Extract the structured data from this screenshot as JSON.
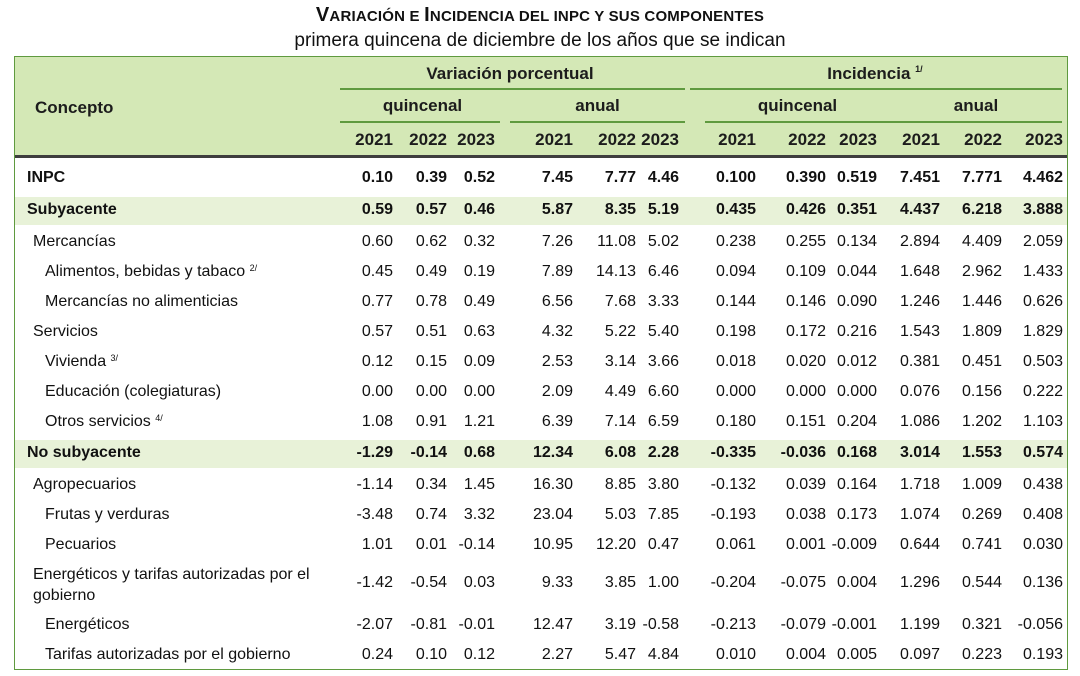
{
  "title": {
    "first": "V",
    "rest1": "ARIACIÓN E ",
    "second": "I",
    "rest2": "NCIDENCIA DEL ",
    "third": "INPC",
    "rest3": " Y SUS COMPONENTES"
  },
  "subtitle": "primera quincena de diciembre de los años que se indican",
  "header": {
    "concepto": "Concepto",
    "variacion": "Variación porcentual",
    "incidencia": "Incidencia",
    "incidencia_note": "1/",
    "quincenal": "quincenal",
    "anual": "anual",
    "years": [
      "2021",
      "2022",
      "2023"
    ]
  },
  "rows": [
    {
      "label": "INPC",
      "note": "",
      "bold": true,
      "band": false,
      "indent": 0,
      "values": [
        "0.10",
        "0.39",
        "0.52",
        "7.45",
        "7.77",
        "4.46",
        "0.100",
        "0.390",
        "0.519",
        "7.451",
        "7.771",
        "4.462"
      ]
    },
    {
      "label": "Subyacente",
      "note": "",
      "bold": true,
      "band": true,
      "indent": 1,
      "values": [
        "0.59",
        "0.57",
        "0.46",
        "5.87",
        "8.35",
        "5.19",
        "0.435",
        "0.426",
        "0.351",
        "4.437",
        "6.218",
        "3.888"
      ]
    },
    {
      "label": "Mercancías",
      "note": "",
      "bold": false,
      "band": false,
      "indent": 2,
      "values": [
        "0.60",
        "0.62",
        "0.32",
        "7.26",
        "11.08",
        "5.02",
        "0.238",
        "0.255",
        "0.134",
        "2.894",
        "4.409",
        "2.059"
      ]
    },
    {
      "label": "Alimentos, bebidas y tabaco",
      "note": "2/",
      "bold": false,
      "band": false,
      "indent": 3,
      "values": [
        "0.45",
        "0.49",
        "0.19",
        "7.89",
        "14.13",
        "6.46",
        "0.094",
        "0.109",
        "0.044",
        "1.648",
        "2.962",
        "1.433"
      ]
    },
    {
      "label": "Mercancías no alimenticias",
      "note": "",
      "bold": false,
      "band": false,
      "indent": 3,
      "values": [
        "0.77",
        "0.78",
        "0.49",
        "6.56",
        "7.68",
        "3.33",
        "0.144",
        "0.146",
        "0.090",
        "1.246",
        "1.446",
        "0.626"
      ]
    },
    {
      "label": "Servicios",
      "note": "",
      "bold": false,
      "band": false,
      "indent": 2,
      "values": [
        "0.57",
        "0.51",
        "0.63",
        "4.32",
        "5.22",
        "5.40",
        "0.198",
        "0.172",
        "0.216",
        "1.543",
        "1.809",
        "1.829"
      ]
    },
    {
      "label": "Vivienda",
      "note": "3/",
      "bold": false,
      "band": false,
      "indent": 3,
      "values": [
        "0.12",
        "0.15",
        "0.09",
        "2.53",
        "3.14",
        "3.66",
        "0.018",
        "0.020",
        "0.012",
        "0.381",
        "0.451",
        "0.503"
      ]
    },
    {
      "label": "Educación (colegiaturas)",
      "note": "",
      "bold": false,
      "band": false,
      "indent": 3,
      "values": [
        "0.00",
        "0.00",
        "0.00",
        "2.09",
        "4.49",
        "6.60",
        "0.000",
        "0.000",
        "0.000",
        "0.076",
        "0.156",
        "0.222"
      ]
    },
    {
      "label": "Otros servicios",
      "note": "4/",
      "bold": false,
      "band": false,
      "indent": 3,
      "values": [
        "1.08",
        "0.91",
        "1.21",
        "6.39",
        "7.14",
        "6.59",
        "0.180",
        "0.151",
        "0.204",
        "1.086",
        "1.202",
        "1.103"
      ]
    },
    {
      "label": "No subyacente",
      "note": "",
      "bold": true,
      "band": true,
      "indent": 1,
      "values": [
        "-1.29",
        "-0.14",
        "0.68",
        "12.34",
        "6.08",
        "2.28",
        "-0.335",
        "-0.036",
        "0.168",
        "3.014",
        "1.553",
        "0.574"
      ]
    },
    {
      "label": "Agropecuarios",
      "note": "",
      "bold": false,
      "band": false,
      "indent": 2,
      "values": [
        "-1.14",
        "0.34",
        "1.45",
        "16.30",
        "8.85",
        "3.80",
        "-0.132",
        "0.039",
        "0.164",
        "1.718",
        "1.009",
        "0.438"
      ]
    },
    {
      "label": "Frutas y verduras",
      "note": "",
      "bold": false,
      "band": false,
      "indent": 3,
      "values": [
        "-3.48",
        "0.74",
        "3.32",
        "23.04",
        "5.03",
        "7.85",
        "-0.193",
        "0.038",
        "0.173",
        "1.074",
        "0.269",
        "0.408"
      ]
    },
    {
      "label": "Pecuarios",
      "note": "",
      "bold": false,
      "band": false,
      "indent": 3,
      "values": [
        "1.01",
        "0.01",
        "-0.14",
        "10.95",
        "12.20",
        "0.47",
        "0.061",
        "0.001",
        "-0.009",
        "0.644",
        "0.741",
        "0.030"
      ]
    },
    {
      "label": "Energéticos y tarifas autorizadas por el gobierno",
      "note": "",
      "bold": false,
      "band": false,
      "indent": 2,
      "wrap": true,
      "values": [
        "-1.42",
        "-0.54",
        "0.03",
        "9.33",
        "3.85",
        "1.00",
        "-0.204",
        "-0.075",
        "0.004",
        "1.296",
        "0.544",
        "0.136"
      ]
    },
    {
      "label": "Energéticos",
      "note": "",
      "bold": false,
      "band": false,
      "indent": 3,
      "values": [
        "-2.07",
        "-0.81",
        "-0.01",
        "12.47",
        "3.19",
        "-0.58",
        "-0.213",
        "-0.079",
        "-0.001",
        "1.199",
        "0.321",
        "-0.056"
      ]
    },
    {
      "label": "Tarifas autorizadas por el gobierno",
      "note": "",
      "bold": false,
      "band": false,
      "indent": 3,
      "values": [
        "0.24",
        "0.10",
        "0.12",
        "2.27",
        "5.47",
        "4.84",
        "0.010",
        "0.004",
        "0.005",
        "0.097",
        "0.223",
        "0.193"
      ]
    }
  ]
}
